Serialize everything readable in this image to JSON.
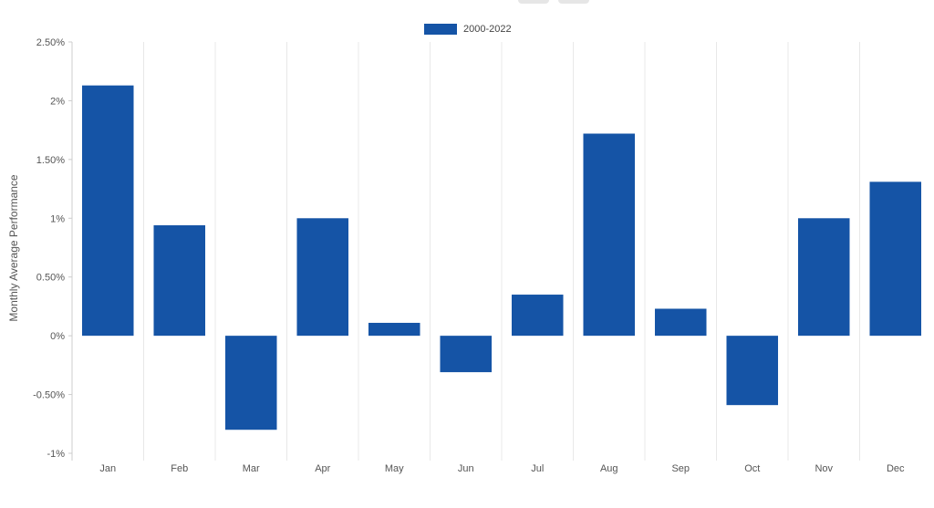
{
  "chart_data": {
    "type": "bar",
    "categories": [
      "Jan",
      "Feb",
      "Mar",
      "Apr",
      "May",
      "Jun",
      "Jul",
      "Aug",
      "Sep",
      "Oct",
      "Nov",
      "Dec"
    ],
    "series": [
      {
        "name": "2000-2022",
        "values": [
          2.13,
          0.94,
          -0.8,
          1.0,
          0.11,
          -0.31,
          0.35,
          1.72,
          0.23,
          -0.59,
          1.0,
          1.31
        ]
      }
    ],
    "ylabel": "Monthly Average Performance",
    "ylim": [
      -1,
      2.5
    ],
    "yticks": [
      {
        "value": 2.5,
        "label": "2.50%"
      },
      {
        "value": 2.0,
        "label": "2%"
      },
      {
        "value": 1.5,
        "label": "1.50%"
      },
      {
        "value": 1.0,
        "label": "1%"
      },
      {
        "value": 0.5,
        "label": "0.50%"
      },
      {
        "value": 0.0,
        "label": "0%"
      },
      {
        "value": -0.5,
        "label": "-0.50%"
      },
      {
        "value": -1.0,
        "label": "-1%"
      }
    ],
    "grid": "vertical",
    "legend_position": "top-center",
    "colors": {
      "bar": "#1554a6",
      "grid": "#e8e8e8",
      "axis": "#cccccc"
    }
  }
}
